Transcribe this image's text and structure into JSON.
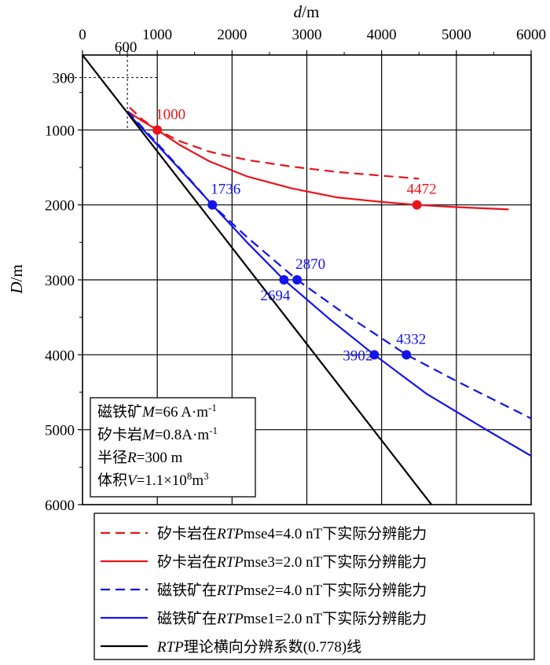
{
  "chart_data": {
    "type": "line",
    "xlabel": "d/m",
    "ylabel": "D/m",
    "xlim": [
      0,
      6000
    ],
    "ylim": [
      6000,
      0
    ],
    "x_axis_position": "top",
    "y_axis_inverted": true,
    "x_ticks": [
      0,
      1000,
      2000,
      3000,
      4000,
      5000,
      6000
    ],
    "y_ticks": [
      1000,
      2000,
      3000,
      4000,
      5000,
      6000
    ],
    "x_tick_labels": [
      "0",
      "1000",
      "2000",
      "3000",
      "4000",
      "5000",
      "6000"
    ],
    "y_tick_labels": [
      "1000",
      "2000",
      "3000",
      "4000",
      "5000",
      "6000"
    ],
    "grid": true,
    "extra_annotations": {
      "x_marker_label": "600",
      "y_marker_label": "300",
      "x_marker": 600,
      "y_marker": 300
    },
    "series": [
      {
        "name": "矽卡岩在RTPmse4=4.0 nT下实际分辨能力",
        "color": "#e8141b",
        "dash": true,
        "x": [
          630,
          800,
          1000,
          1300,
          1700,
          2200,
          2800,
          3400,
          4000,
          4500
        ],
        "y": [
          700,
          860,
          1000,
          1150,
          1290,
          1400,
          1490,
          1560,
          1610,
          1650
        ]
      },
      {
        "name": "矽卡岩在RTPmse3=2.0 nT下实际分辨能力",
        "color": "#e8141b",
        "dash": false,
        "x": [
          600,
          800,
          1000,
          1300,
          1700,
          2200,
          2800,
          3400,
          4000,
          4472,
          5000,
          5700
        ],
        "y": [
          750,
          880,
          1000,
          1200,
          1420,
          1620,
          1780,
          1900,
          1960,
          2000,
          2030,
          2060
        ]
      },
      {
        "name": "磁铁矿在RTPmse2=4.0 nT下实际分辨能力",
        "color": "#1414e8",
        "dash": true,
        "x": [
          600,
          1000,
          1400,
          1736,
          2200,
          2870,
          3500,
          4332,
          5000,
          6000
        ],
        "y": [
          750,
          1180,
          1620,
          2000,
          2430,
          3000,
          3450,
          4000,
          4350,
          4850
        ]
      },
      {
        "name": "磁铁矿在RTPmse1=2.0 nT下实际分辨能力",
        "color": "#1414e8",
        "dash": false,
        "x": [
          600,
          1000,
          1400,
          1736,
          2200,
          2694,
          3300,
          3902,
          4600,
          5400,
          6000
        ],
        "y": [
          770,
          1200,
          1630,
          2000,
          2500,
          3000,
          3520,
          4000,
          4520,
          5000,
          5350
        ]
      },
      {
        "name": "RTP理论横向分辨系数(0.778)线",
        "color": "#000000",
        "dash": false,
        "x": [
          0,
          4668
        ],
        "y": [
          0,
          6000
        ]
      }
    ],
    "points": [
      {
        "x": 1000,
        "y": 1000,
        "label": "1000",
        "color": "#e8141b",
        "label_pos": "above-right"
      },
      {
        "x": 4472,
        "y": 2000,
        "label": "4472",
        "color": "#e8141b",
        "label_pos": "above"
      },
      {
        "x": 1736,
        "y": 2000,
        "label": "1736",
        "color": "#1414e8",
        "label_pos": "above-right"
      },
      {
        "x": 2870,
        "y": 3000,
        "label": "2870",
        "color": "#1414e8",
        "label_pos": "above-right"
      },
      {
        "x": 2694,
        "y": 3000,
        "label": "2694",
        "color": "#1414e8",
        "label_pos": "below-left"
      },
      {
        "x": 3902,
        "y": 4000,
        "label": "3902",
        "color": "#1414e8",
        "label_pos": "left"
      },
      {
        "x": 4332,
        "y": 4000,
        "label": "4332",
        "color": "#1414e8",
        "label_pos": "above"
      }
    ],
    "info_box": [
      "磁铁矿M=66 A·m-1",
      "矽卡岩M=0.8A·m-1",
      "半径R=300 m",
      "体积V=1.1×108m3"
    ],
    "legend_position": "bottom-outside"
  }
}
